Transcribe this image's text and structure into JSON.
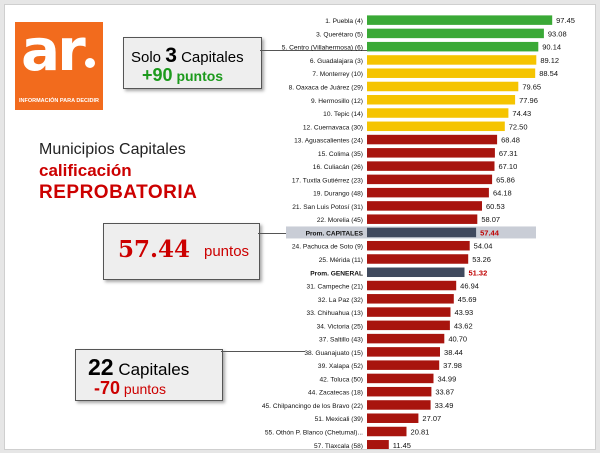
{
  "logo": {
    "mark": "ar",
    "tagline": "INFORMACIÓN PARA DECIDIR"
  },
  "callouts": {
    "top": {
      "prefix": "Solo",
      "number": "3",
      "word": "Capitales",
      "delta": "+90",
      "unit": "puntos"
    },
    "middle": {
      "value": "57.44",
      "unit": "puntos"
    },
    "bottom": {
      "number": "22",
      "word": "Capitales",
      "delta": "-70",
      "unit": "puntos"
    }
  },
  "headline": {
    "line1": "Municipios Capitales",
    "line2": "calificación",
    "line3": "REPROBATORIA"
  },
  "colors": {
    "green": "#3aa936",
    "yellow": "#f5c400",
    "red": "#a8140e",
    "avg_bar": "#404a5e",
    "avg_bg": "#c9cdd6",
    "avg_value": "#c00000"
  },
  "chart_data": {
    "type": "bar",
    "orientation": "horizontal",
    "xlim": [
      0,
      100
    ],
    "categories": [
      "1. Puebla (4)",
      "3. Querétaro (5)",
      "5. Centro (Villahermosa) (6)",
      "6. Guadalajara (3)",
      "7. Monterrey (10)",
      "8. Oaxaca de Juárez (29)",
      "9. Hermosillo (12)",
      "10. Tepic (14)",
      "12. Cuernavaca (30)",
      "13. Aguascalientes (24)",
      "15. Colima (35)",
      "16. Culiacán (26)",
      "17. Tuxtla Gutiérrez (23)",
      "19. Durango (48)",
      "21. San Luis Potosí (31)",
      "22. Morelia (45)",
      "Prom. CAPITALES",
      "24. Pachuca de Soto (9)",
      "25. Mérida (11)",
      "Prom. GENERAL",
      "31. Campeche (21)",
      "32. La Paz (32)",
      "33. Chihuahua (13)",
      "34. Victoria (25)",
      "37. Saltillo (43)",
      "38. Guanajuato (15)",
      "39. Xalapa (52)",
      "42. Toluca (50)",
      "44. Zacatecas (18)",
      "45. Chilpancingo de los Bravo (22)",
      "51. Mexicali (39)",
      "55. Othón P. Blanco (Chetumal)...",
      "57. Tlaxcala (58)"
    ],
    "values": [
      97.45,
      93.08,
      90.14,
      89.12,
      88.54,
      79.65,
      77.96,
      74.43,
      72.5,
      68.48,
      67.31,
      67.1,
      65.86,
      64.18,
      60.53,
      58.07,
      57.44,
      54.04,
      53.26,
      51.32,
      46.94,
      45.69,
      43.93,
      43.62,
      40.7,
      38.44,
      37.98,
      34.99,
      33.87,
      33.49,
      27.07,
      20.81,
      11.45
    ],
    "value_labels": [
      "97.45",
      "93.08",
      "90.14",
      "89.12",
      "88.54",
      "79.65",
      "77.96",
      "74.43",
      "72.50",
      "68.48",
      "67.31",
      "67.10",
      "65.86",
      "64.18",
      "60.53",
      "58.07",
      "57.44",
      "54.04",
      "53.26",
      "51.32",
      "46.94",
      "45.69",
      "43.93",
      "43.62",
      "40.70",
      "38.44",
      "37.98",
      "34.99",
      "33.87",
      "33.49",
      "27.07",
      "20.81",
      "11.45"
    ],
    "groups": [
      "green",
      "green",
      "green",
      "yellow",
      "yellow",
      "yellow",
      "yellow",
      "yellow",
      "yellow",
      "red",
      "red",
      "red",
      "red",
      "red",
      "red",
      "red",
      "average",
      "red",
      "red",
      "average",
      "red",
      "red",
      "red",
      "red",
      "red",
      "red",
      "red",
      "red",
      "red",
      "red",
      "red",
      "red",
      "red"
    ]
  }
}
